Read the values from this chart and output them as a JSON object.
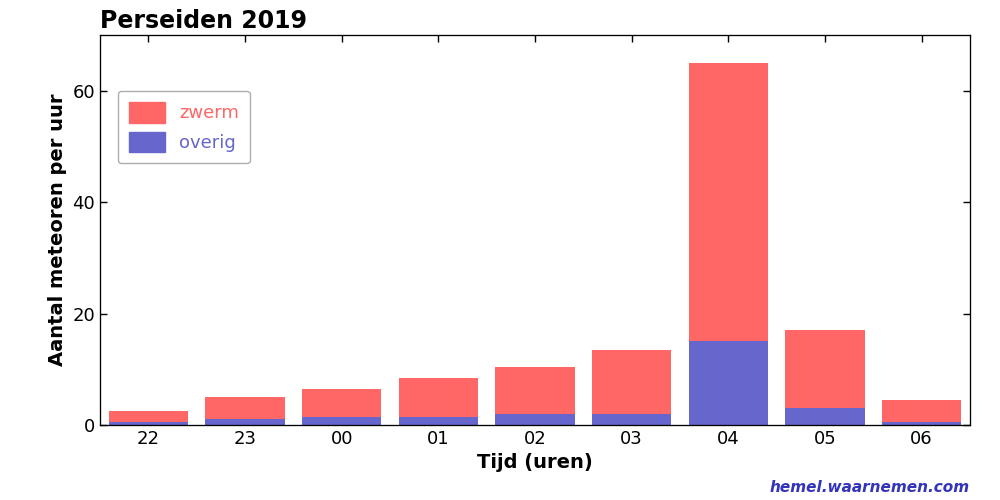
{
  "title": "Perseiden 2019",
  "xlabel": "Tijd (uren)",
  "ylabel": "Aantal meteoren per uur",
  "categories": [
    "22",
    "23",
    "00",
    "01",
    "02",
    "03",
    "04",
    "05",
    "06"
  ],
  "total": [
    2.5,
    5.0,
    6.5,
    8.5,
    10.5,
    13.5,
    65.0,
    17.0,
    4.5
  ],
  "overig": [
    0.5,
    1.0,
    1.5,
    1.5,
    2.0,
    2.0,
    15.0,
    3.0,
    0.5
  ],
  "color_zwerm": "#FF6666",
  "color_overig": "#6666CC",
  "ylim": [
    0,
    70
  ],
  "yticks": [
    0,
    20,
    40,
    60
  ],
  "watermark": "hemel.waarnemen.com",
  "watermark_color": "#3333BB",
  "background_color": "#FFFFFF",
  "title_fontsize": 17,
  "label_fontsize": 14,
  "tick_fontsize": 13,
  "legend_fontsize": 13,
  "bar_width": 0.82
}
